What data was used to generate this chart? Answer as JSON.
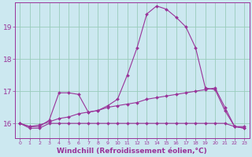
{
  "background_color": "#cce8f0",
  "grid_color": "#99ccbb",
  "line_color": "#993399",
  "marker_color": "#993399",
  "xlabel": "Windchill (Refroidissement éolien,°C)",
  "xlabel_fontsize": 6.5,
  "yticks": [
    16,
    17,
    18,
    19
  ],
  "xticks": [
    0,
    1,
    2,
    3,
    4,
    5,
    6,
    7,
    8,
    9,
    10,
    11,
    12,
    13,
    14,
    15,
    16,
    17,
    18,
    19,
    20,
    21,
    22,
    23
  ],
  "xlim": [
    -0.5,
    23.5
  ],
  "ylim": [
    15.55,
    19.75
  ],
  "series": [
    {
      "x": [
        0,
        1,
        2,
        3,
        4,
        5,
        6,
        7,
        8,
        9,
        10,
        11,
        12,
        13,
        14,
        15,
        16,
        17,
        18,
        19,
        20,
        21,
        22,
        23
      ],
      "y": [
        16.0,
        15.85,
        15.85,
        16.0,
        16.0,
        16.0,
        16.0,
        16.0,
        16.0,
        16.0,
        16.0,
        16.0,
        16.0,
        16.0,
        16.0,
        16.0,
        16.0,
        16.0,
        16.0,
        16.0,
        16.0,
        16.0,
        15.9,
        15.9
      ]
    },
    {
      "x": [
        0,
        1,
        2,
        3,
        4,
        5,
        6,
        7,
        8,
        9,
        10,
        11,
        12,
        13,
        14,
        15,
        16,
        17,
        18,
        19,
        20,
        21,
        22,
        23
      ],
      "y": [
        16.0,
        15.9,
        15.95,
        16.05,
        16.15,
        16.2,
        16.3,
        16.35,
        16.4,
        16.5,
        16.55,
        16.6,
        16.65,
        16.75,
        16.8,
        16.85,
        16.9,
        16.95,
        17.0,
        17.05,
        17.1,
        16.5,
        15.9,
        15.85
      ]
    },
    {
      "x": [
        0,
        1,
        2,
        3,
        4,
        5,
        6,
        7,
        8,
        9,
        10,
        11,
        12,
        13,
        14,
        15,
        16,
        17,
        18,
        19,
        20,
        21,
        22,
        23
      ],
      "y": [
        16.0,
        15.9,
        15.9,
        16.1,
        16.95,
        16.95,
        16.9,
        16.35,
        16.4,
        16.55,
        16.75,
        17.5,
        18.35,
        19.4,
        19.65,
        19.55,
        19.3,
        19.0,
        18.35,
        17.1,
        17.05,
        16.4,
        15.9,
        15.85
      ]
    }
  ]
}
